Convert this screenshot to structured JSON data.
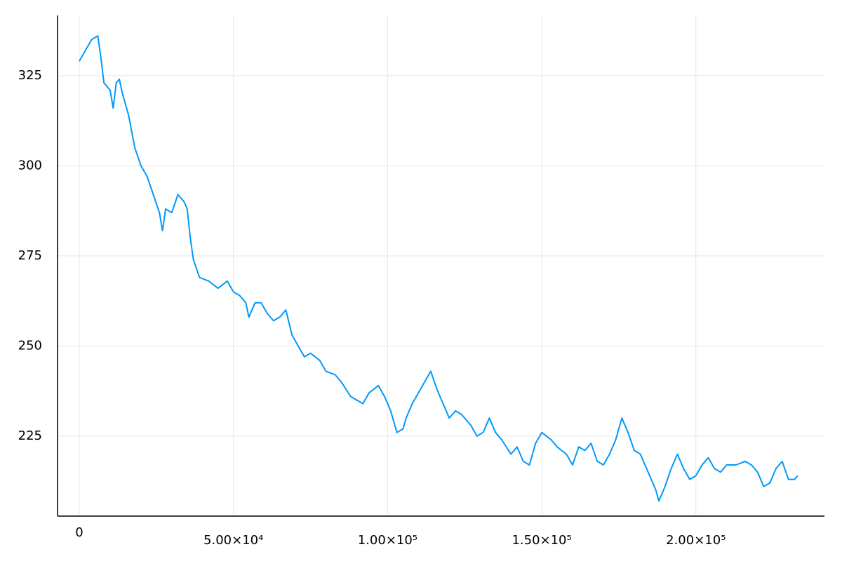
{
  "chart_data": {
    "type": "line",
    "x": [
      0,
      2000,
      4000,
      6000,
      7000,
      8000,
      10000,
      11000,
      12000,
      13000,
      14000,
      16000,
      18000,
      20000,
      22000,
      24000,
      26000,
      27000,
      28000,
      30000,
      32000,
      34000,
      35000,
      36000,
      37000,
      39000,
      42000,
      45000,
      48000,
      50000,
      52000,
      54000,
      55000,
      57000,
      59000,
      61000,
      63000,
      65000,
      67000,
      69000,
      71000,
      73000,
      75000,
      78000,
      80000,
      83000,
      85000,
      88000,
      90000,
      92000,
      94000,
      97000,
      99000,
      101000,
      103000,
      105000,
      106000,
      108000,
      110000,
      112000,
      114000,
      116000,
      118000,
      120000,
      122000,
      124000,
      127000,
      129000,
      131000,
      133000,
      135000,
      137000,
      140000,
      142000,
      144000,
      146000,
      148000,
      150000,
      153000,
      155000,
      158000,
      160000,
      162000,
      164000,
      166000,
      168000,
      170000,
      172000,
      174000,
      176000,
      178000,
      180000,
      182000,
      185000,
      187000,
      188000,
      190000,
      192000,
      194000,
      196000,
      198000,
      200000,
      202000,
      204000,
      206000,
      208000,
      210000,
      213000,
      216000,
      218000,
      220000,
      222000,
      224000,
      226000,
      228000,
      230000,
      232000,
      233000
    ],
    "series": [
      {
        "color": "#009af9",
        "values": [
          329,
          332,
          335,
          336,
          330,
          323,
          321,
          316,
          323,
          324,
          320,
          314,
          305,
          300,
          297,
          292,
          287,
          282,
          288,
          287,
          292,
          290,
          288,
          280,
          274,
          269,
          268,
          266,
          268,
          265,
          264,
          262,
          258,
          262,
          262,
          259,
          257,
          258,
          260,
          253,
          250,
          247,
          248,
          246,
          243,
          242,
          240,
          236,
          235,
          234,
          237,
          239,
          236,
          232,
          226,
          227,
          230,
          234,
          237,
          240,
          243,
          238,
          234,
          230,
          232,
          231,
          228,
          225,
          226,
          230,
          226,
          224,
          220,
          222,
          218,
          217,
          223,
          226,
          224,
          222,
          220,
          217,
          222,
          221,
          223,
          218,
          217,
          220,
          224,
          230,
          226,
          221,
          220,
          214,
          210,
          207,
          211,
          216,
          220,
          216,
          213,
          214,
          217,
          219,
          216,
          215,
          217,
          217,
          218,
          217,
          215,
          211,
          212,
          216,
          218,
          213,
          213,
          214
        ]
      }
    ],
    "xlim": [
      -7055,
      241700
    ],
    "xticks": [
      0,
      {
        "value": 50000,
        "label": "5.00×10⁴"
      },
      {
        "value": 100000,
        "label": "1.00×10⁵"
      },
      {
        "value": 150000,
        "label": "1.50×10⁵"
      },
      {
        "value": 200000,
        "label": "2.00×10⁵"
      }
    ],
    "ylim": [
      202.8,
      341.7
    ],
    "yticks": [
      225,
      250,
      275,
      300,
      325
    ],
    "grid": true
  }
}
